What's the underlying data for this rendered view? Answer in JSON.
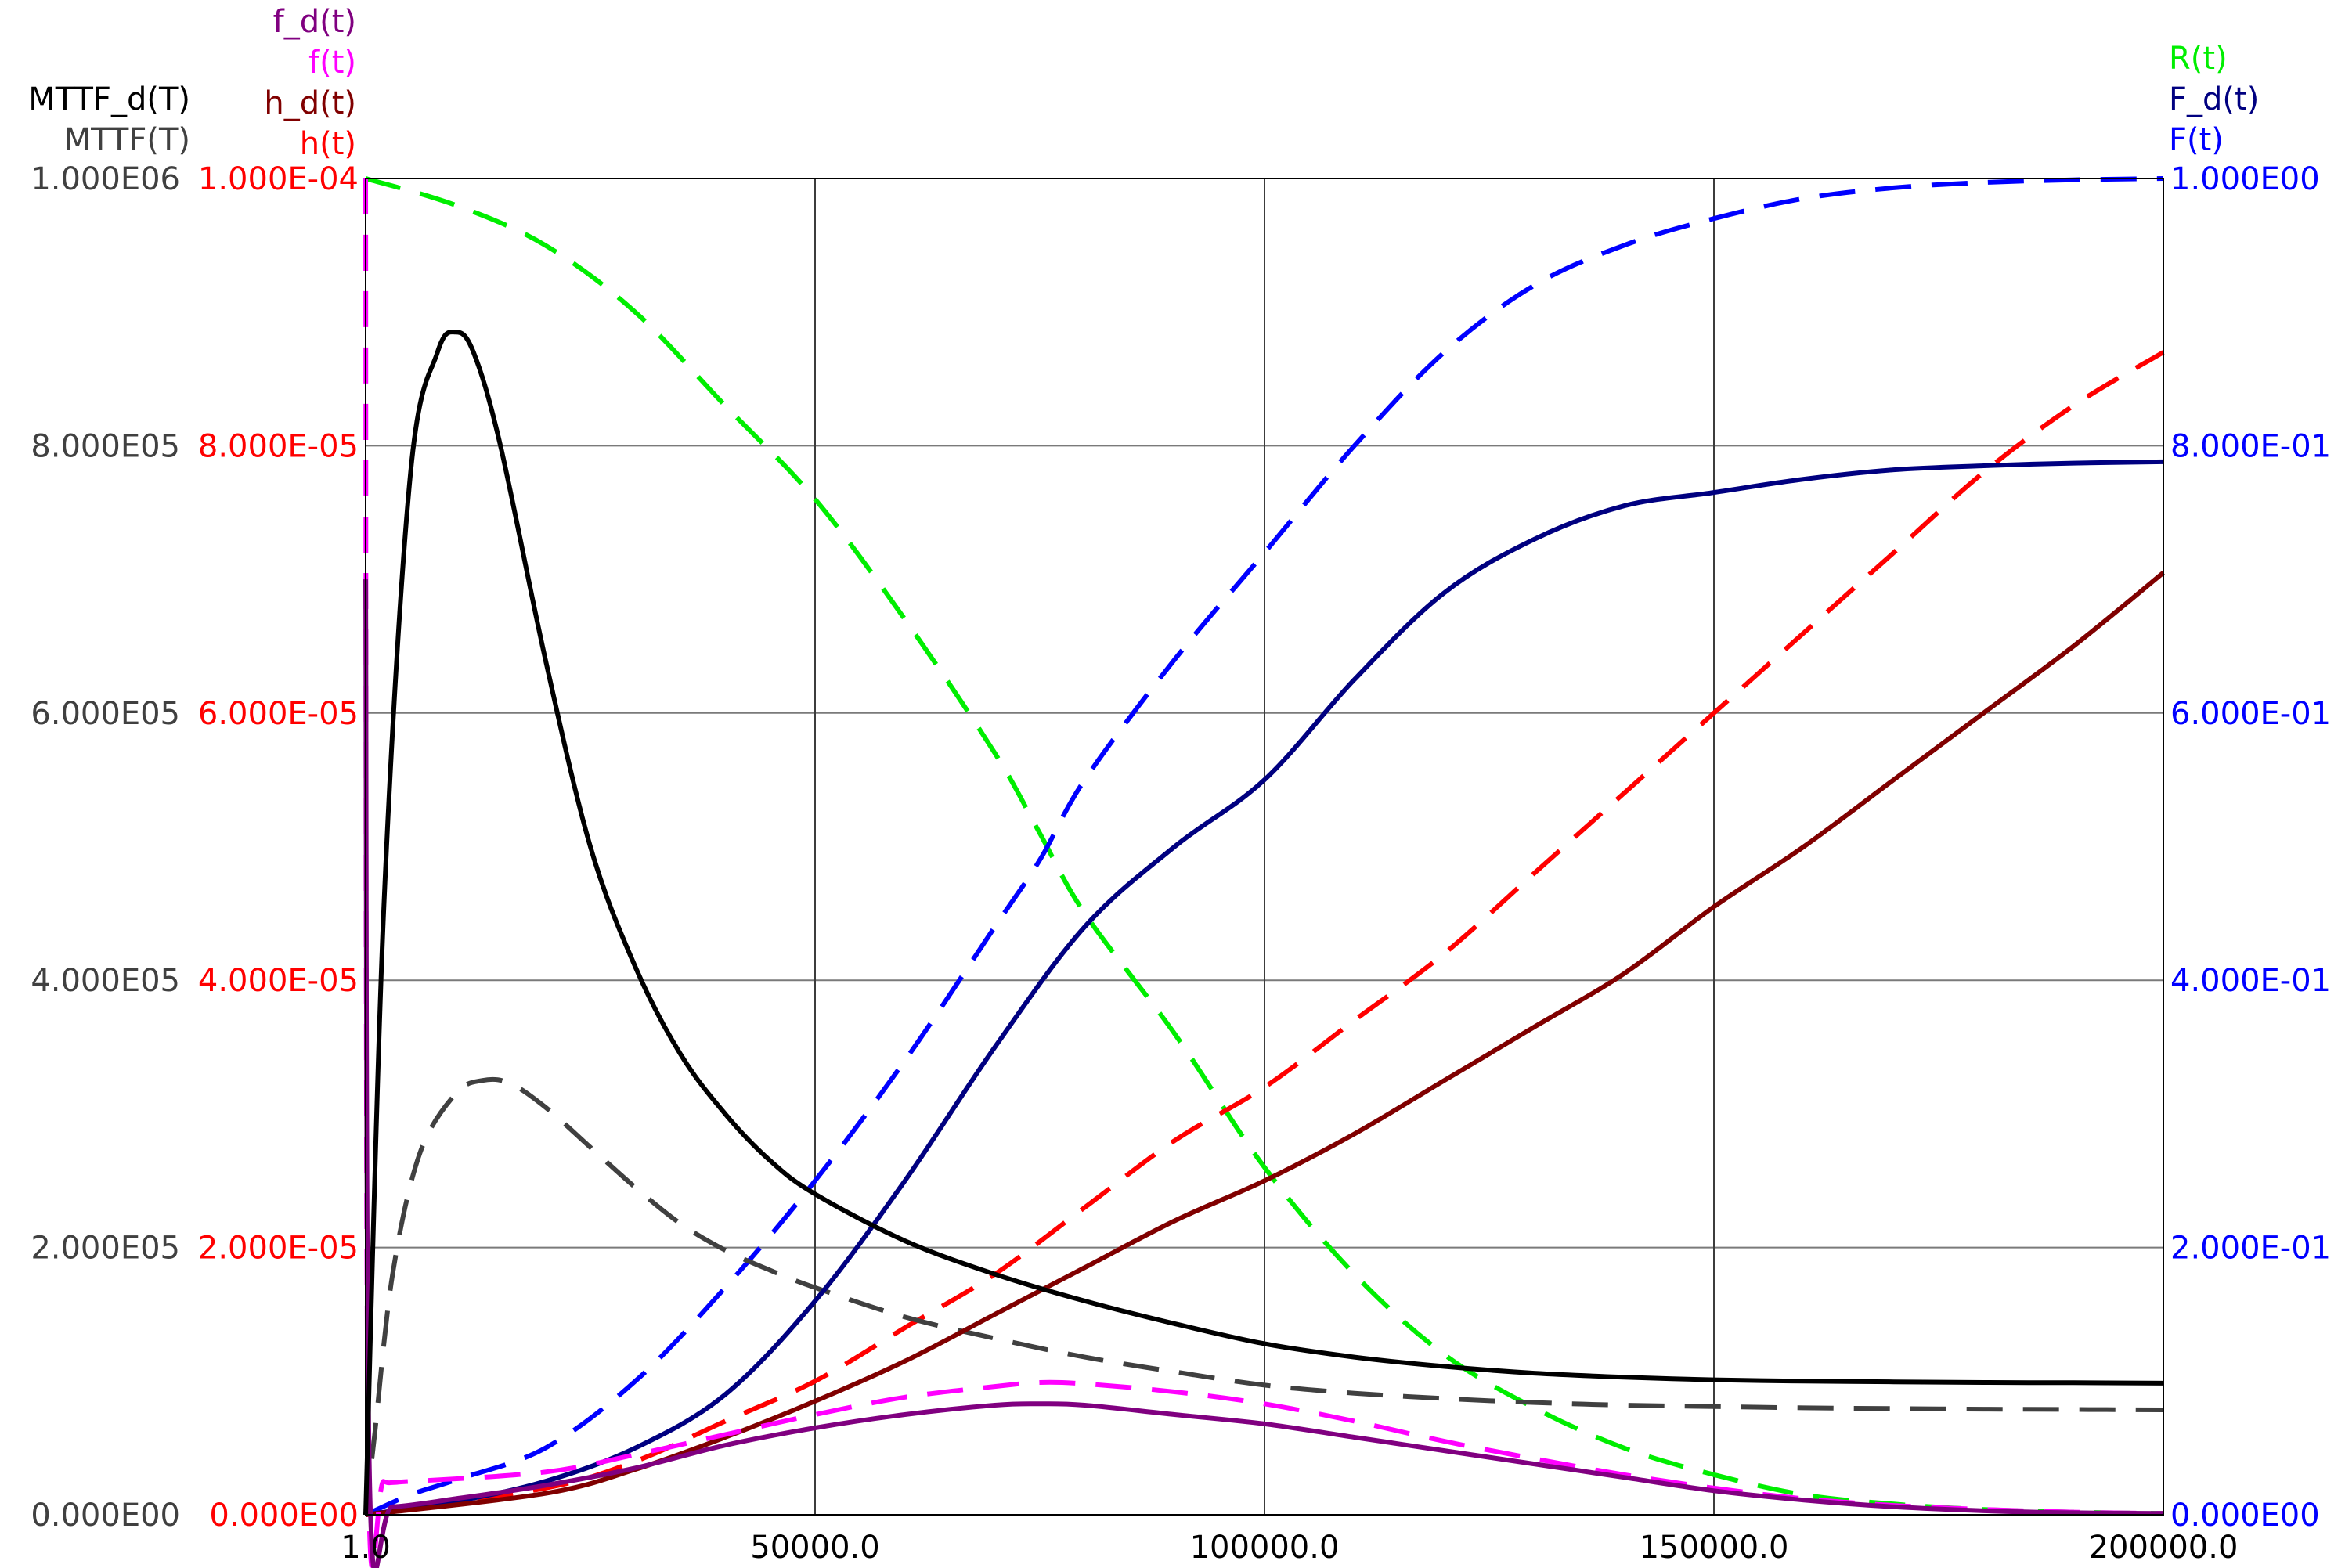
{
  "chart_data": {
    "type": "line",
    "title": "",
    "xlabel": "",
    "xlim": [
      1.0,
      200000.0
    ],
    "x_ticks": [
      "1.0",
      "50000.0",
      "100000.0",
      "150000.0",
      "200000.0"
    ],
    "grid": true,
    "axes": {
      "left_outer": {
        "title_lines": [
          "MTTF_d(T)",
          "MTTF(T)"
        ],
        "title_colors": [
          "#000000",
          "#404040"
        ],
        "ylim": [
          0,
          1000000
        ],
        "ticks": [
          "0.000E00",
          "2.000E05",
          "4.000E05",
          "6.000E05",
          "8.000E05",
          "1.000E06"
        ],
        "color": "#404040"
      },
      "left_inner": {
        "title_lines": [
          "f_d(t)",
          "f(t)",
          "h_d(t)",
          "h(t)"
        ],
        "title_colors": [
          "#800080",
          "#ff00ff",
          "#800000",
          "#ff0000"
        ],
        "ylim": [
          0,
          0.0001
        ],
        "ticks": [
          "0.000E00",
          "2.000E-05",
          "4.000E-05",
          "6.000E-05",
          "8.000E-05",
          "1.000E-04"
        ],
        "color": "#ff0000"
      },
      "right": {
        "title_lines": [
          "R(t)",
          "F_d(t)",
          "F(t)"
        ],
        "title_colors": [
          "#00ee00",
          "#000080",
          "#0000ff"
        ],
        "ylim": [
          0,
          1
        ],
        "ticks": [
          "0.000E00",
          "2.000E-01",
          "4.000E-01",
          "6.000E-01",
          "8.000E-01",
          "1.000E00"
        ],
        "color": "#0000ff"
      }
    },
    "series": [
      {
        "name": "R(t)",
        "axis": "right",
        "color": "#00ee00",
        "dashed": true,
        "x": [
          1,
          10000,
          20000,
          30000,
          40000,
          50000,
          60000,
          70000,
          75000,
          80000,
          90000,
          100000,
          110000,
          120000,
          130000,
          140000,
          150000,
          160000,
          170000,
          180000,
          190000,
          200000
        ],
        "y": [
          1.0,
          0.98,
          0.95,
          0.9,
          0.83,
          0.76,
          0.67,
          0.57,
          0.51,
          0.45,
          0.36,
          0.26,
          0.18,
          0.12,
          0.08,
          0.05,
          0.03,
          0.015,
          0.008,
          0.004,
          0.002,
          0.001
        ]
      },
      {
        "name": "F(t)",
        "axis": "right",
        "color": "#0000ff",
        "dashed": true,
        "x": [
          1,
          5000,
          10000,
          20000,
          30000,
          40000,
          50000,
          60000,
          70000,
          75000,
          80000,
          90000,
          100000,
          110000,
          120000,
          130000,
          140000,
          150000,
          160000,
          170000,
          180000,
          190000,
          200000
        ],
        "y": [
          0.0,
          0.015,
          0.026,
          0.05,
          0.1,
          0.17,
          0.25,
          0.34,
          0.44,
          0.49,
          0.55,
          0.64,
          0.72,
          0.8,
          0.87,
          0.92,
          0.95,
          0.97,
          0.985,
          0.993,
          0.997,
          0.999,
          1.0
        ]
      },
      {
        "name": "F_d(t)",
        "axis": "right",
        "color": "#000080",
        "dashed": false,
        "x": [
          1,
          10000,
          20000,
          30000,
          40000,
          50000,
          60000,
          70000,
          80000,
          90000,
          100000,
          110000,
          120000,
          130000,
          140000,
          150000,
          160000,
          170000,
          180000,
          190000,
          200000
        ],
        "y": [
          0.0,
          0.01,
          0.025,
          0.05,
          0.09,
          0.16,
          0.25,
          0.35,
          0.44,
          0.5,
          0.55,
          0.625,
          0.69,
          0.73,
          0.755,
          0.765,
          0.775,
          0.782,
          0.785,
          0.787,
          0.788
        ]
      },
      {
        "name": "h(t)",
        "axis": "left_inner",
        "color": "#ff0000",
        "dashed": true,
        "x": [
          1,
          20000,
          30000,
          40000,
          50000,
          60000,
          70000,
          80000,
          90000,
          100000,
          110000,
          120000,
          130000,
          140000,
          150000,
          160000,
          170000,
          180000,
          190000,
          200000
        ],
        "y": [
          0.0,
          2e-06,
          4e-06,
          7e-06,
          1e-05,
          1.4e-05,
          1.8e-05,
          2.3e-05,
          2.8e-05,
          3.2e-05,
          3.7e-05,
          4.2e-05,
          4.8e-05,
          5.4e-05,
          6e-05,
          6.6e-05,
          7.2e-05,
          7.8e-05,
          8.3e-05,
          8.7e-05
        ]
      },
      {
        "name": "h_d(t)",
        "axis": "left_inner",
        "color": "#800000",
        "dashed": false,
        "x": [
          1,
          20000,
          30000,
          40000,
          50000,
          60000,
          70000,
          80000,
          90000,
          100000,
          110000,
          120000,
          130000,
          140000,
          150000,
          160000,
          170000,
          180000,
          190000,
          200000
        ],
        "y": [
          0.0,
          1.6e-06,
          3.4e-06,
          5.8e-06,
          8.5e-06,
          1.15e-05,
          1.5e-05,
          1.85e-05,
          2.2e-05,
          2.5e-05,
          2.85e-05,
          3.25e-05,
          3.65e-05,
          4.05e-05,
          4.55e-05,
          5e-05,
          5.5e-05,
          6e-05,
          6.5e-05,
          7.05e-05
        ]
      },
      {
        "name": "f(t)",
        "axis": "left_inner",
        "color": "#ff00ff",
        "dashed": true,
        "x": [
          1,
          300,
          2000,
          5000,
          20000,
          30000,
          40000,
          50000,
          60000,
          70000,
          75000,
          80000,
          90000,
          100000,
          110000,
          120000,
          130000,
          140000,
          150000,
          160000,
          170000,
          180000,
          190000,
          200000
        ],
        "y": [
          0.0001,
          3.5e-06,
          2.5e-06,
          2.5e-06,
          3.2e-06,
          4.5e-06,
          6e-06,
          7.5e-06,
          8.8e-06,
          9.6e-06,
          9.9e-06,
          9.8e-06,
          9.2e-06,
          8.3e-06,
          7e-06,
          5.5e-06,
          4.2e-06,
          3e-06,
          2e-06,
          1.2e-06,
          7e-07,
          4e-07,
          2e-07,
          1e-07
        ]
      },
      {
        "name": "f_d(t)",
        "axis": "left_inner",
        "color": "#800080",
        "dashed": false,
        "x": [
          1,
          500,
          3000,
          10000,
          20000,
          30000,
          40000,
          50000,
          60000,
          70000,
          75000,
          80000,
          90000,
          100000,
          110000,
          120000,
          130000,
          140000,
          150000,
          160000,
          170000,
          180000,
          190000,
          200000
        ],
        "y": [
          7e-05,
          1e-06,
          6e-07,
          1.2e-06,
          2.2e-06,
          3.5e-06,
          5.2e-06,
          6.5e-06,
          7.5e-06,
          8.2e-06,
          8.3e-06,
          8.2e-06,
          7.5e-06,
          6.8e-06,
          5.8e-06,
          4.8e-06,
          3.8e-06,
          2.8e-06,
          1.8e-06,
          1.1e-06,
          6e-07,
          3e-07,
          1.5e-07,
          1e-07
        ]
      },
      {
        "name": "MTTF_d(T)",
        "axis": "left_outer",
        "color": "#000000",
        "dashed": false,
        "x": [
          1,
          2000,
          5000,
          8000,
          10000,
          12000,
          15000,
          20000,
          25000,
          30000,
          35000,
          40000,
          45000,
          50000,
          60000,
          70000,
          80000,
          90000,
          100000,
          110000,
          120000,
          130000,
          140000,
          150000,
          160000,
          170000,
          180000,
          190000,
          200000
        ],
        "y": [
          0,
          450000,
          780000,
          870000,
          885000,
          870000,
          800000,
          640000,
          500000,
          410000,
          345000,
          300000,
          265000,
          240000,
          205000,
          180000,
          160000,
          143000,
          128000,
          118000,
          111000,
          106000,
          103000,
          101000,
          100000,
          99500,
          99000,
          98800,
          98500
        ]
      },
      {
        "name": "MTTF(T)",
        "axis": "left_outer",
        "color": "#404040",
        "dashed": true,
        "x": [
          1,
          1000,
          3000,
          6000,
          10000,
          13000,
          16000,
          20000,
          25000,
          30000,
          35000,
          40000,
          45000,
          50000,
          60000,
          70000,
          80000,
          90000,
          100000,
          110000,
          120000,
          130000,
          140000,
          150000,
          160000,
          170000,
          180000,
          190000,
          200000
        ],
        "y": [
          0,
          60000,
          180000,
          270000,
          315000,
          325000,
          323000,
          305000,
          275000,
          245000,
          218000,
          198000,
          183000,
          170000,
          148000,
          132000,
          118000,
          107000,
          97000,
          91000,
          87000,
          84000,
          82000,
          81000,
          80000,
          79500,
          79000,
          78800,
          78500
        ]
      }
    ]
  }
}
